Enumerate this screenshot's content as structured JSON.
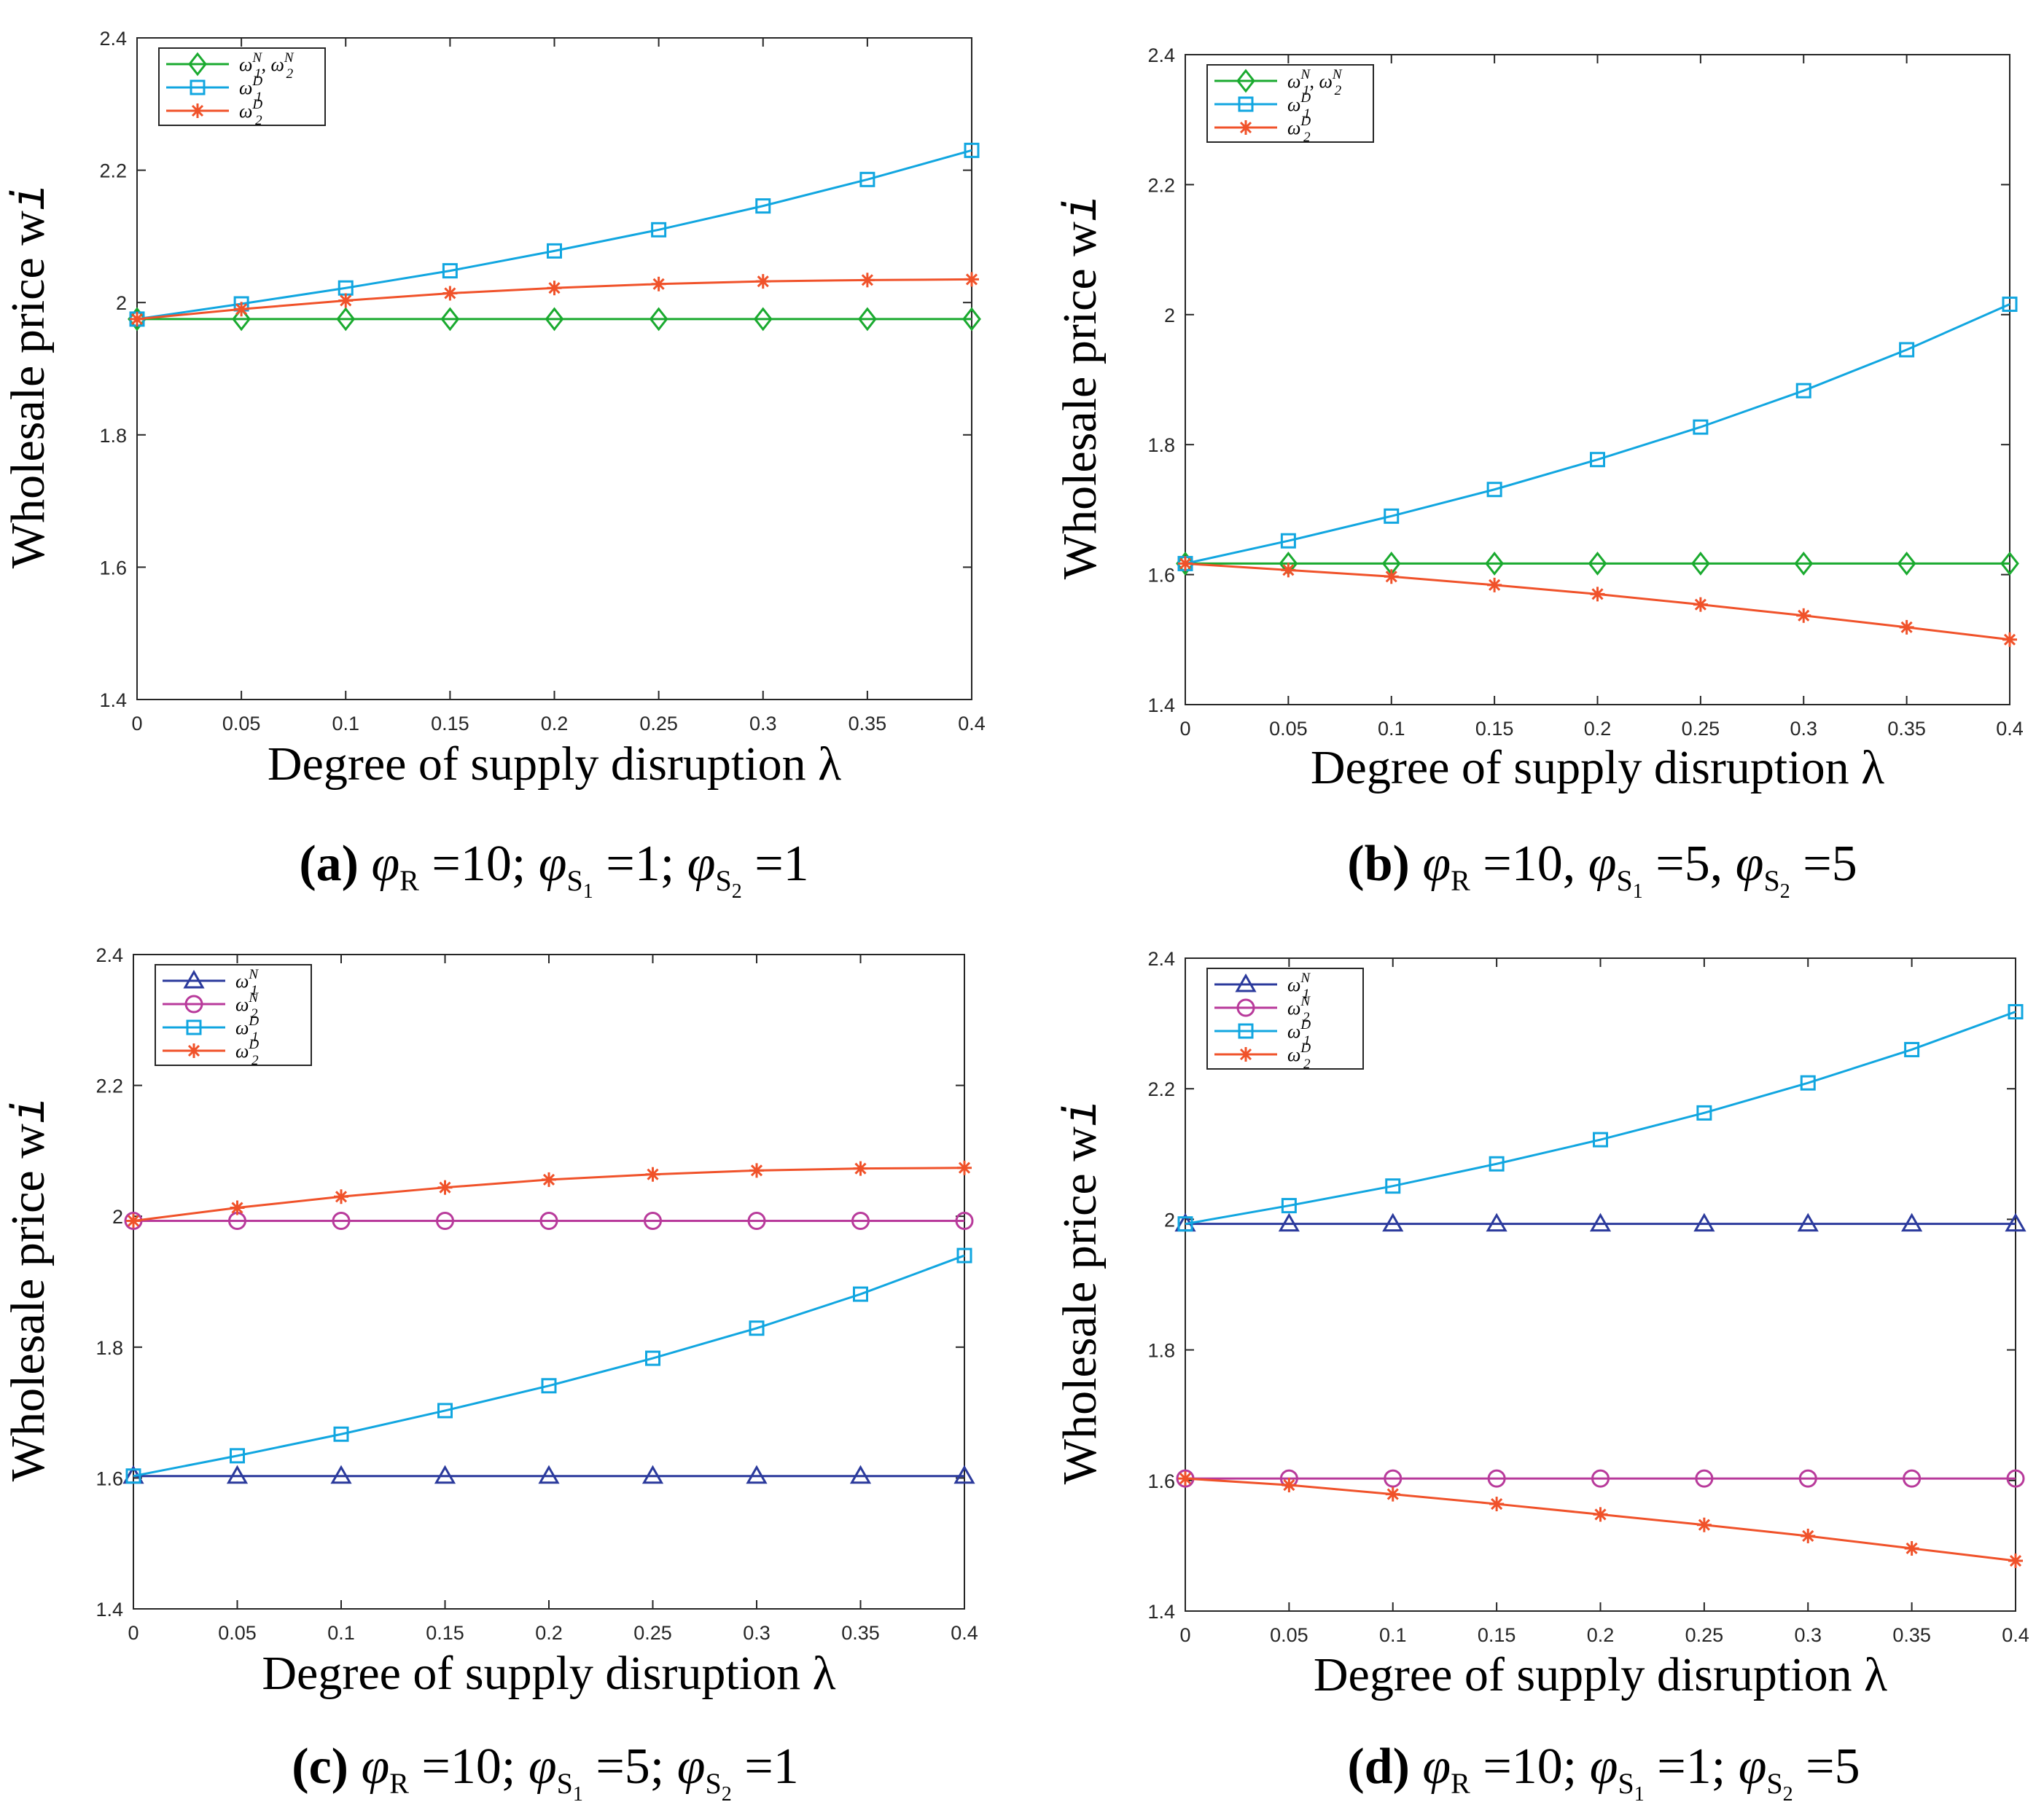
{
  "figure": {
    "x_tick_labels": [
      "0",
      "0.05",
      "0.1",
      "0.15",
      "0.2",
      "0.25",
      "0.3",
      "0.35",
      "0.4"
    ],
    "y_tick_labels": [
      "1.4",
      "1.6",
      "1.8",
      "2",
      "2.2",
      "2.4"
    ]
  },
  "chart_data": [
    {
      "id": "a",
      "type": "line",
      "xlabel": "Degree of supply disruption λ",
      "ylabel": "Wholesale price w",
      "ylabel_sub": "i",
      "caption": {
        "label": "(a)",
        "params": [
          {
            "sym": "φ",
            "sub": "R",
            "val": "10"
          },
          {
            "sym": "φ",
            "sub": "S1",
            "val": "1"
          },
          {
            "sym": "φ",
            "sub": "S2",
            "val": "1"
          }
        ],
        "sep": ";"
      },
      "xlim": [
        0,
        0.4
      ],
      "ylim": [
        1.4,
        2.4
      ],
      "x": [
        0,
        0.05,
        0.1,
        0.15,
        0.2,
        0.25,
        0.3,
        0.35,
        0.4
      ],
      "legend_position": "top-left",
      "series": [
        {
          "name": "ω1N, ω2N",
          "label_main": "ω",
          "label_sub": "1",
          "label_sup": "N",
          "label_main2": "ω",
          "label_sub2": "2",
          "label_sup2": "N",
          "color": "#1aaa2f",
          "marker": "diamond",
          "values": [
            1.975,
            1.975,
            1.975,
            1.975,
            1.975,
            1.975,
            1.975,
            1.975,
            1.975
          ]
        },
        {
          "name": "ω1D",
          "label_main": "ω",
          "label_sub": "1",
          "label_sup": "D",
          "color": "#11a6e0",
          "marker": "square",
          "values": [
            1.975,
            1.998,
            2.022,
            2.048,
            2.078,
            2.11,
            2.146,
            2.186,
            2.23
          ]
        },
        {
          "name": "ω2D",
          "label_main": "ω",
          "label_sub": "2",
          "label_sup": "D",
          "color": "#f0522a",
          "marker": "star",
          "values": [
            1.975,
            1.99,
            2.003,
            2.014,
            2.022,
            2.028,
            2.032,
            2.034,
            2.035
          ]
        }
      ]
    },
    {
      "id": "b",
      "type": "line",
      "xlabel": "Degree of supply disruption λ",
      "ylabel": "Wholesale price w",
      "ylabel_sub": "i",
      "caption": {
        "label": "(b)",
        "params": [
          {
            "sym": "φ",
            "sub": "R",
            "val": "10"
          },
          {
            "sym": "φ",
            "sub": "S1",
            "val": "5"
          },
          {
            "sym": "φ",
            "sub": "S2",
            "val": "5"
          }
        ],
        "sep": ","
      },
      "xlim": [
        0,
        0.4
      ],
      "ylim": [
        1.4,
        2.4
      ],
      "x": [
        0,
        0.05,
        0.1,
        0.15,
        0.2,
        0.25,
        0.3,
        0.35,
        0.4
      ],
      "legend_position": "top-left",
      "series": [
        {
          "name": "ω1N, ω2N",
          "label_main": "ω",
          "label_sub": "1",
          "label_sup": "N",
          "label_main2": "ω",
          "label_sub2": "2",
          "label_sup2": "N",
          "color": "#1aaa2f",
          "marker": "diamond",
          "values": [
            1.617,
            1.617,
            1.617,
            1.617,
            1.617,
            1.617,
            1.617,
            1.617,
            1.617
          ]
        },
        {
          "name": "ω1D",
          "label_main": "ω",
          "label_sub": "1",
          "label_sup": "D",
          "color": "#11a6e0",
          "marker": "square",
          "values": [
            1.617,
            1.652,
            1.69,
            1.731,
            1.777,
            1.827,
            1.883,
            1.946,
            2.016
          ]
        },
        {
          "name": "ω2D",
          "label_main": "ω",
          "label_sub": "2",
          "label_sup": "D",
          "color": "#f0522a",
          "marker": "star",
          "values": [
            1.617,
            1.607,
            1.597,
            1.584,
            1.57,
            1.554,
            1.537,
            1.519,
            1.5
          ]
        }
      ]
    },
    {
      "id": "c",
      "type": "line",
      "xlabel": "Degree of supply disruption λ",
      "ylabel": "Wholesale price w",
      "ylabel_sub": "i",
      "caption": {
        "label": "(c)",
        "params": [
          {
            "sym": "φ",
            "sub": "R",
            "val": "10"
          },
          {
            "sym": "φ",
            "sub": "S1",
            "val": "5"
          },
          {
            "sym": "φ",
            "sub": "S2",
            "val": "1"
          }
        ],
        "sep": ";"
      },
      "xlim": [
        0,
        0.4
      ],
      "ylim": [
        1.4,
        2.4
      ],
      "x": [
        0,
        0.05,
        0.1,
        0.15,
        0.2,
        0.25,
        0.3,
        0.35,
        0.4
      ],
      "legend_position": "top-left",
      "series": [
        {
          "name": "ω1N",
          "label_main": "ω",
          "label_sub": "1",
          "label_sup": "N",
          "color": "#2b3a9c",
          "marker": "triangle",
          "values": [
            1.603,
            1.603,
            1.603,
            1.603,
            1.603,
            1.603,
            1.603,
            1.603,
            1.603
          ]
        },
        {
          "name": "ω2N",
          "label_main": "ω",
          "label_sub": "2",
          "label_sup": "N",
          "color": "#b83a9b",
          "marker": "circle",
          "values": [
            1.993,
            1.993,
            1.993,
            1.993,
            1.993,
            1.993,
            1.993,
            1.993,
            1.993
          ]
        },
        {
          "name": "ω1D",
          "label_main": "ω",
          "label_sub": "1",
          "label_sup": "D",
          "color": "#11a6e0",
          "marker": "square",
          "values": [
            1.603,
            1.634,
            1.667,
            1.703,
            1.741,
            1.783,
            1.829,
            1.881,
            1.94
          ]
        },
        {
          "name": "ω2D",
          "label_main": "ω",
          "label_sub": "2",
          "label_sup": "D",
          "color": "#f0522a",
          "marker": "star",
          "values": [
            1.993,
            2.013,
            2.03,
            2.044,
            2.056,
            2.064,
            2.07,
            2.073,
            2.074
          ]
        }
      ]
    },
    {
      "id": "d",
      "type": "line",
      "xlabel": "Degree of supply disruption λ",
      "ylabel": "Wholesale price w",
      "ylabel_sub": "i",
      "caption": {
        "label": "(d)",
        "params": [
          {
            "sym": "φ",
            "sub": "R",
            "val": "10"
          },
          {
            "sym": "φ",
            "sub": "S1",
            "val": "1"
          },
          {
            "sym": "φ",
            "sub": "S2",
            "val": "5"
          }
        ],
        "sep": ";"
      },
      "xlim": [
        0,
        0.4
      ],
      "ylim": [
        1.4,
        2.4
      ],
      "x": [
        0,
        0.05,
        0.1,
        0.15,
        0.2,
        0.25,
        0.3,
        0.35,
        0.4
      ],
      "legend_position": "top-left",
      "series": [
        {
          "name": "ω1N",
          "label_main": "ω",
          "label_sub": "1",
          "label_sup": "N",
          "color": "#2b3a9c",
          "marker": "triangle",
          "values": [
            1.993,
            1.993,
            1.993,
            1.993,
            1.993,
            1.993,
            1.993,
            1.993,
            1.993
          ]
        },
        {
          "name": "ω2N",
          "label_main": "ω",
          "label_sub": "2",
          "label_sup": "N",
          "color": "#b83a9b",
          "marker": "circle",
          "values": [
            1.603,
            1.603,
            1.603,
            1.603,
            1.603,
            1.603,
            1.603,
            1.603,
            1.603
          ]
        },
        {
          "name": "ω1D",
          "label_main": "ω",
          "label_sub": "1",
          "label_sup": "D",
          "color": "#11a6e0",
          "marker": "square",
          "values": [
            1.993,
            2.021,
            2.051,
            2.085,
            2.122,
            2.163,
            2.209,
            2.26,
            2.318
          ]
        },
        {
          "name": "ω2D",
          "label_main": "ω",
          "label_sub": "2",
          "label_sup": "D",
          "color": "#f0522a",
          "marker": "star",
          "values": [
            1.603,
            1.593,
            1.579,
            1.564,
            1.548,
            1.532,
            1.515,
            1.496,
            1.477
          ]
        }
      ]
    }
  ]
}
